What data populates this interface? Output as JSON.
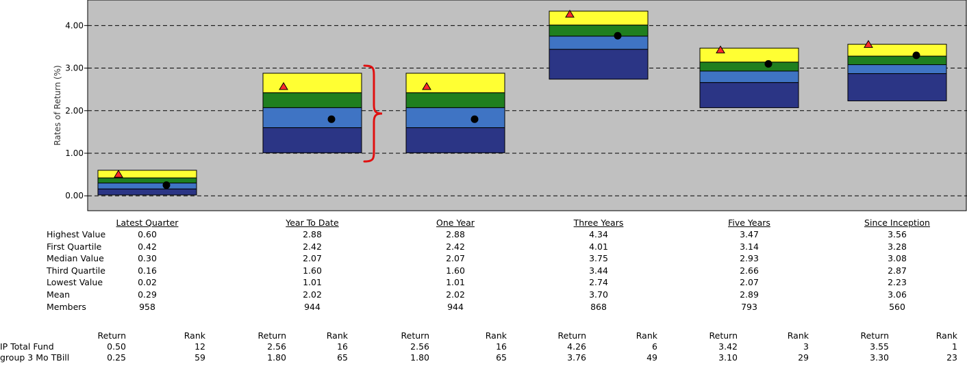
{
  "chart_data": {
    "type": "box",
    "ylabel": "Rates of Return (%)",
    "ylim": [
      -0.35,
      4.6
    ],
    "yticks": [
      "0.00",
      "1.00",
      "2.00",
      "3.00",
      "4.00"
    ],
    "grid": true,
    "categories": [
      "Latest Quarter",
      "Year To Date",
      "One Year",
      "Three Years",
      "Five Years",
      "Since Inception"
    ],
    "stats_labels": [
      "Highest Value",
      "First Quartile",
      "Median Value",
      "Third Quartile",
      "Lowest Value",
      "Mean",
      "Members"
    ],
    "stats": [
      {
        "highest": "0.60",
        "first_quartile": "0.42",
        "median": "0.30",
        "third_quartile": "0.16",
        "lowest": "0.02",
        "mean": "0.29",
        "members": "958"
      },
      {
        "highest": "2.88",
        "first_quartile": "2.42",
        "median": "2.07",
        "third_quartile": "1.60",
        "lowest": "1.01",
        "mean": "2.02",
        "members": "944"
      },
      {
        "highest": "2.88",
        "first_quartile": "2.42",
        "median": "2.07",
        "third_quartile": "1.60",
        "lowest": "1.01",
        "mean": "2.02",
        "members": "944"
      },
      {
        "highest": "4.34",
        "first_quartile": "4.01",
        "median": "3.75",
        "third_quartile": "3.44",
        "lowest": "2.74",
        "mean": "3.70",
        "members": "868"
      },
      {
        "highest": "3.47",
        "first_quartile": "3.14",
        "median": "2.93",
        "third_quartile": "2.66",
        "lowest": "2.07",
        "mean": "2.89",
        "members": "793"
      },
      {
        "highest": "3.56",
        "first_quartile": "3.28",
        "median": "3.08",
        "third_quartile": "2.87",
        "lowest": "2.23",
        "mean": "3.06",
        "members": "560"
      }
    ],
    "rank_headers": {
      "return": "Return",
      "rank": "Rank"
    },
    "series": [
      {
        "name": "IP Total Fund",
        "marker": "triangle",
        "returns": [
          "0.50",
          "2.56",
          "2.56",
          "4.26",
          "3.42",
          "3.55"
        ],
        "ranks": [
          "12",
          "16",
          "16",
          "6",
          "3",
          "1"
        ]
      },
      {
        "name": "group 3 Mo TBill",
        "marker": "circle",
        "returns": [
          "0.25",
          "1.80",
          "1.80",
          "3.76",
          "3.10",
          "3.30"
        ],
        "ranks": [
          "59",
          "65",
          "65",
          "49",
          "29",
          "23"
        ]
      }
    ],
    "colors": {
      "background": "#c0c0c0",
      "q1": "#ffff33",
      "q2": "#1f7f1f",
      "q3": "#3f74c4",
      "q4": "#2b3585",
      "triangle": "#ff2b2b",
      "circle": "#000000",
      "bracket": "#e01010"
    },
    "annotation": {
      "type": "bracket",
      "category": "Year To Date"
    }
  }
}
